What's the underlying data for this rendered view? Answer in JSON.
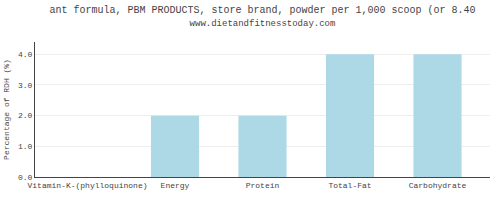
{
  "chart_data": {
    "type": "bar",
    "title": "ant formula, PBM PRODUCTS, store brand, powder per 1,000 scoop (or 8.40",
    "subtitle": "www.dietandfitnesstoday.com",
    "categories": [
      "Vitamin-K-(phylloquinone)",
      "Energy",
      "Protein",
      "Total-Fat",
      "Carbohydrate"
    ],
    "values": [
      0.0,
      2.0,
      2.0,
      4.0,
      4.0
    ],
    "color": "#add8e6",
    "ylabel": "Percentage of RDH (%)",
    "ylim": [
      0.0,
      4.4
    ],
    "yticks": [
      {
        "value": 0.0,
        "label": "0.0"
      },
      {
        "value": 1.0,
        "label": "1.0"
      },
      {
        "value": 2.0,
        "label": "2.0"
      },
      {
        "value": 3.0,
        "label": "3.0"
      },
      {
        "value": 4.0,
        "label": "4.0"
      }
    ],
    "grid": true
  }
}
